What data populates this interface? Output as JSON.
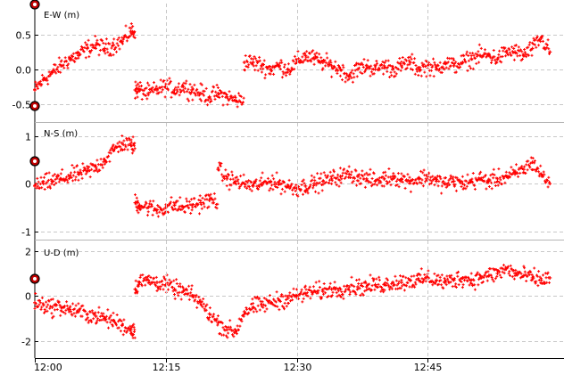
{
  "chart_data": [
    {
      "type": "scatter",
      "title": "E-W (m)",
      "ylim": [
        -0.7,
        0.9
      ],
      "yticks": [
        0.5,
        0.0,
        -0.5
      ],
      "ytick_labels": [
        "0.5",
        "0.0",
        "-0.5"
      ],
      "grid": true,
      "series": [
        {
          "x": [
            0,
            1,
            2,
            3,
            4,
            5,
            6,
            7,
            8,
            9,
            10,
            11,
            11.5,
            12,
            13,
            14,
            15,
            16,
            17,
            18,
            19,
            20,
            21,
            22,
            23,
            24,
            25,
            26,
            27,
            28,
            29,
            30,
            31,
            32,
            33,
            34,
            35,
            36,
            37,
            38,
            39,
            40,
            41,
            42,
            43,
            44,
            45,
            46,
            47,
            48,
            49,
            50,
            51,
            52,
            53,
            54,
            55,
            56,
            57,
            58,
            59
          ],
          "y": [
            -0.3,
            -0.15,
            -0.05,
            0.05,
            0.15,
            0.2,
            0.3,
            0.35,
            0.3,
            0.35,
            0.4,
            0.55,
            -0.3,
            -0.3,
            -0.35,
            -0.3,
            -0.25,
            -0.3,
            -0.25,
            -0.3,
            -0.35,
            -0.4,
            -0.35,
            -0.4,
            -0.45,
            0.1,
            0.1,
            0.05,
            0.0,
            0.05,
            0.0,
            0.1,
            0.2,
            0.15,
            0.1,
            0.05,
            0.0,
            -0.1,
            0.0,
            0.05,
            0.0,
            0.05,
            0.0,
            0.05,
            0.1,
            0.0,
            0.05,
            0.0,
            0.1,
            0.05,
            0.1,
            0.15,
            0.2,
            0.2,
            0.15,
            0.25,
            0.25,
            0.2,
            0.3,
            0.45,
            0.25
          ]
        }
      ]
    },
    {
      "type": "scatter",
      "title": "N-S (m)",
      "ylim": [
        -1.1,
        1.2
      ],
      "yticks": [
        1,
        0,
        -1
      ],
      "ytick_labels": [
        "1",
        "0",
        "-1"
      ],
      "grid": true,
      "series": [
        {
          "x": [
            0,
            1,
            2,
            3,
            4,
            5,
            6,
            7,
            8,
            9,
            10,
            11,
            11.5,
            12,
            13,
            14,
            15,
            16,
            17,
            18,
            19,
            20,
            21,
            22,
            23,
            24,
            25,
            26,
            27,
            28,
            29,
            30,
            31,
            32,
            33,
            34,
            35,
            36,
            37,
            38,
            39,
            40,
            41,
            42,
            43,
            44,
            45,
            46,
            47,
            48,
            49,
            50,
            51,
            52,
            53,
            54,
            55,
            56,
            57,
            58,
            59
          ],
          "y": [
            -0.05,
            0.0,
            0.05,
            0.1,
            0.15,
            0.2,
            0.25,
            0.35,
            0.5,
            0.7,
            0.85,
            0.8,
            -0.4,
            -0.45,
            -0.5,
            -0.55,
            -0.5,
            -0.45,
            -0.5,
            -0.45,
            -0.4,
            -0.35,
            0.3,
            0.1,
            0.05,
            0.0,
            -0.05,
            0.0,
            0.05,
            0.0,
            -0.05,
            -0.1,
            -0.05,
            0.0,
            0.05,
            0.1,
            0.15,
            0.2,
            0.15,
            0.1,
            0.05,
            0.1,
            0.15,
            0.1,
            0.05,
            0.1,
            0.15,
            0.05,
            0.0,
            0.05,
            0.0,
            0.05,
            0.1,
            0.05,
            0.1,
            0.15,
            0.2,
            0.3,
            0.45,
            0.2,
            0.0
          ]
        }
      ]
    },
    {
      "type": "scatter",
      "title": "U-D (m)",
      "ylim": [
        -2.6,
        2.3
      ],
      "yticks": [
        2,
        0,
        -2
      ],
      "ytick_labels": [
        "2",
        "0",
        "-2"
      ],
      "grid": true,
      "series": [
        {
          "x": [
            0,
            1,
            2,
            3,
            4,
            5,
            6,
            7,
            8,
            9,
            10,
            11,
            11.5,
            12,
            13,
            14,
            15,
            16,
            17,
            18,
            19,
            20,
            21,
            22,
            23,
            24,
            25,
            26,
            27,
            28,
            29,
            30,
            31,
            32,
            33,
            34,
            35,
            36,
            37,
            38,
            39,
            40,
            41,
            42,
            43,
            44,
            45,
            46,
            47,
            48,
            49,
            50,
            51,
            52,
            53,
            54,
            55,
            56,
            57,
            58,
            59
          ],
          "y": [
            -0.3,
            -0.4,
            -0.5,
            -0.5,
            -0.6,
            -0.7,
            -0.8,
            -0.9,
            -1.0,
            -1.1,
            -1.3,
            -1.5,
            0.3,
            0.6,
            0.7,
            0.6,
            0.5,
            0.3,
            0.2,
            0.0,
            -0.3,
            -0.8,
            -1.2,
            -1.5,
            -1.6,
            -0.7,
            -0.5,
            -0.4,
            -0.3,
            -0.2,
            -0.1,
            0.0,
            0.1,
            0.2,
            0.2,
            0.3,
            0.3,
            0.4,
            0.4,
            0.4,
            0.5,
            0.5,
            0.6,
            0.6,
            0.7,
            0.7,
            0.8,
            0.7,
            0.6,
            0.7,
            0.8,
            0.7,
            0.8,
            0.9,
            1.0,
            1.2,
            1.0,
            0.9,
            0.8,
            0.7,
            0.8
          ]
        }
      ]
    }
  ],
  "x_axis": {
    "tick_minutes": [
      0,
      15,
      30,
      45
    ],
    "tick_labels": [
      "12:00",
      "12:15",
      "12:30",
      "12:45"
    ],
    "xlim": [
      0,
      60
    ]
  },
  "colors": {
    "series": "#ff0000",
    "grid": "#c8c8c8",
    "separator": "#b4b4b4",
    "axis": "#000000"
  }
}
